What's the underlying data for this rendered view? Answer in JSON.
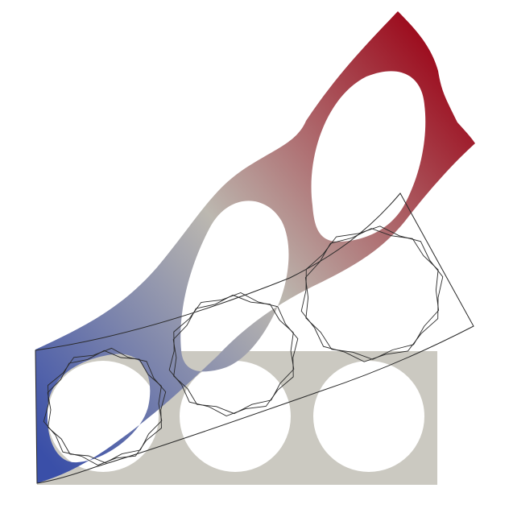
{
  "scene": {
    "background": "#ffffff",
    "reference_plate_color": "#cbc9c1",
    "hole_color": "#ffffff",
    "outline_color": "#2a2a2a",
    "colormap": [
      "#3a4fa8",
      "#bcb8b0",
      "#9c0a1c"
    ],
    "hole_count": 3
  }
}
